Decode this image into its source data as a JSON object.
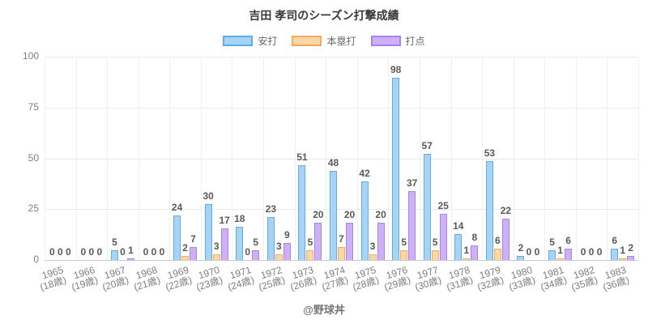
{
  "title": "吉田 孝司のシーズン打撃成績",
  "footer": "@野球丼",
  "chart_data": {
    "type": "bar",
    "title": "吉田 孝司のシーズン打撃成績",
    "categories": [
      {
        "year": "1965",
        "age": "(18歳)"
      },
      {
        "year": "1966",
        "age": "(19歳)"
      },
      {
        "year": "1967",
        "age": "(20歳)"
      },
      {
        "year": "1968",
        "age": "(21歳)"
      },
      {
        "year": "1969",
        "age": "(22歳)"
      },
      {
        "year": "1970",
        "age": "(23歳)"
      },
      {
        "year": "1971",
        "age": "(24歳)"
      },
      {
        "year": "1972",
        "age": "(25歳)"
      },
      {
        "year": "1973",
        "age": "(26歳)"
      },
      {
        "year": "1974",
        "age": "(27歳)"
      },
      {
        "year": "1975",
        "age": "(28歳)"
      },
      {
        "year": "1976",
        "age": "(29歳)"
      },
      {
        "year": "1977",
        "age": "(30歳)"
      },
      {
        "year": "1978",
        "age": "(31歳)"
      },
      {
        "year": "1979",
        "age": "(32歳)"
      },
      {
        "year": "1980",
        "age": "(33歳)"
      },
      {
        "year": "1981",
        "age": "(34歳)"
      },
      {
        "year": "1982",
        "age": "(35歳)"
      },
      {
        "year": "1983",
        "age": "(36歳)"
      }
    ],
    "series": [
      {
        "key": "hits",
        "name": "安打",
        "fill": "#A7D3F4",
        "border": "#5FACE8",
        "values": [
          0,
          0,
          5,
          0,
          24,
          30,
          18,
          23,
          51,
          48,
          42,
          98,
          57,
          14,
          53,
          2,
          5,
          0,
          6
        ]
      },
      {
        "key": "home-runs",
        "name": "本塁打",
        "fill": "#FCD7A6",
        "border": "#F7A95D",
        "values": [
          0,
          0,
          0,
          0,
          2,
          3,
          0,
          3,
          5,
          7,
          3,
          5,
          5,
          1,
          6,
          0,
          1,
          0,
          1
        ]
      },
      {
        "key": "rbi",
        "name": "打点",
        "fill": "#CDB0F6",
        "border": "#A783EF",
        "values": [
          0,
          0,
          1,
          0,
          7,
          17,
          5,
          9,
          20,
          20,
          20,
          37,
          25,
          8,
          22,
          0,
          6,
          0,
          2
        ]
      }
    ],
    "ylim": [
      0,
      100
    ],
    "yticks": [
      0,
      25,
      50,
      75,
      100
    ],
    "grid": true,
    "legend_position": "top",
    "value_labels": true
  }
}
